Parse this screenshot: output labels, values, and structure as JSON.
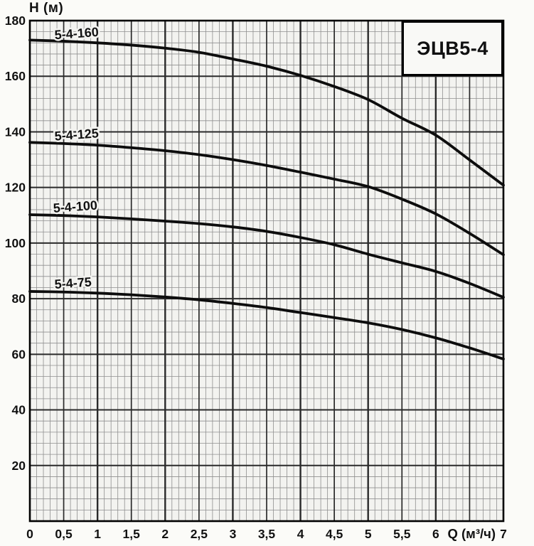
{
  "title_box": {
    "label": "ЭЦВ5-4"
  },
  "axes": {
    "y_axis_title": "H (м)",
    "x_axis_title": "Q (м³/ч)",
    "x_axis_title_position": 6.53,
    "y_tick_labels": [
      "180",
      "160",
      "140",
      "120",
      "100",
      "80",
      "60",
      "40",
      "20"
    ],
    "y_tick_values": [
      180,
      160,
      140,
      120,
      100,
      80,
      60,
      40,
      20
    ],
    "x_tick_labels": [
      "0",
      "0,5",
      "1",
      "1,5",
      "2",
      "2,5",
      "3",
      "3,5",
      "4",
      "4,5",
      "5",
      "5,5",
      "6",
      "7"
    ],
    "x_tick_values": [
      0,
      0.5,
      1,
      1.5,
      2,
      2.5,
      3,
      3.5,
      4,
      4.5,
      5,
      5.5,
      6,
      7
    ]
  },
  "chart_data": {
    "type": "line",
    "title": "ЭЦВ5-4",
    "xlabel": "Q (м³/ч)",
    "ylabel": "H (м)",
    "xlim": [
      0,
      7
    ],
    "ylim": [
      0,
      180
    ],
    "x_major_step": 0.5,
    "x_minor_step": 0.1,
    "y_major_step": 20,
    "y_minor_step": 4,
    "grid": true,
    "legend_position": "inline-labels",
    "x": [
      0,
      0.5,
      1,
      1.5,
      2,
      2.5,
      3,
      3.5,
      4,
      4.5,
      5,
      5.5,
      6,
      6.5,
      7
    ],
    "series": [
      {
        "name": "5-4-160",
        "label_anchor": [
          0.37,
          173.3
        ],
        "values": [
          173,
          172.6,
          172,
          171.2,
          170.1,
          168.6,
          166.2,
          163.6,
          160.3,
          156.3,
          151.6,
          144.9,
          138.8,
          129.9,
          120.8
        ]
      },
      {
        "name": "5-4-125",
        "label_anchor": [
          0.37,
          136.9
        ],
        "values": [
          136.2,
          135.8,
          135.2,
          134.3,
          133.2,
          131.8,
          130,
          127.9,
          125.5,
          123,
          120.3,
          115.8,
          110.5,
          103.5,
          95.8
        ]
      },
      {
        "name": "5-4-100",
        "label_anchor": [
          0.35,
          111.0
        ],
        "values": [
          110.2,
          109.9,
          109.4,
          108.7,
          107.9,
          107,
          105.8,
          104.2,
          102,
          99.4,
          96,
          92.9,
          89.8,
          85.5,
          80.5
        ]
      },
      {
        "name": "5-4-75",
        "label_anchor": [
          0.37,
          83.6
        ],
        "values": [
          82.6,
          82.4,
          82,
          81.4,
          80.6,
          79.6,
          78.3,
          76.8,
          75,
          73.2,
          71.3,
          68.9,
          65.9,
          62.3,
          58.3
        ]
      }
    ]
  },
  "colors": {
    "curve": "#0d0d0d",
    "grid_minor": "#8f8f8f",
    "grid_major": "#2a2a2a",
    "border": "#000000",
    "plot_bg": "#f3f3f0",
    "page_bg": "#fbfbf8",
    "text": "#111111"
  }
}
